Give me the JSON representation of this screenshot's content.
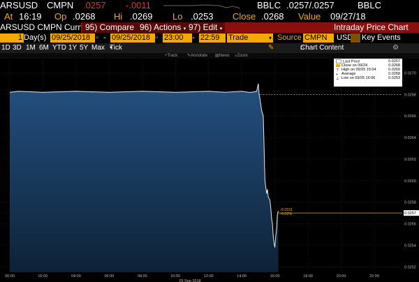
{
  "quote": {
    "ticker": "ARSUSD",
    "source": "CMPN",
    "last": ".0257",
    "change": "-.0011",
    "src2": "BBLC",
    "bid_ask": ".0257/.0257",
    "src3": "BBLC"
  },
  "stats": {
    "at_label": "At",
    "at_value": "16:19",
    "op_label": "Op",
    "op_value": ".0268",
    "hi_label": "Hi",
    "hi_value": ".0269",
    "lo_label": "Lo",
    "lo_value": ".0253",
    "close_label": "Close",
    "close_value": ".0268",
    "value_label": "Value",
    "value_value": "09/27/18"
  },
  "toolbar": {
    "security": "ARSUSD CMPN Curnc",
    "compare": "95) Compare",
    "actions": "96) Actions",
    "edit": "97) Edit",
    "title": "Intraday Price Chart"
  },
  "params": {
    "days": "1",
    "days_label": "Day(s)",
    "start_date": "09/25/2018",
    "end_date": "09/25/2018",
    "start_time": "23:00",
    "end_time": "22:59",
    "field": "Trade",
    "source_label": "Source",
    "source": "CMPN",
    "currency": "USD",
    "key_events": "Key Events"
  },
  "periods": [
    "1D",
    "3D",
    "1M",
    "6M",
    "YTD",
    "1Y",
    "5Y",
    "Max"
  ],
  "tick_label": "Tick",
  "chart_content": "Chart Content",
  "tools": [
    "Track",
    "Annotate",
    "News",
    "Zoom"
  ],
  "legend": [
    {
      "label": "Last Price",
      "value": "0.0257",
      "color": "#ffffff"
    },
    {
      "label": "Close on 09/24",
      "value": "0.0268",
      "color": "#f5a800"
    },
    {
      "label": "High on 09/25 15:04",
      "value": "0.0269",
      "color": "#ffffff"
    },
    {
      "label": "Average",
      "value": "0.0268",
      "color": "#ffffff"
    },
    {
      "label": "Low on 09/25 16:06",
      "value": "0.0253",
      "color": "#ffffff"
    }
  ],
  "chart_data": {
    "type": "area",
    "x_ticks": [
      "00:00",
      "02:00",
      "04:00",
      "06:00",
      "08:00",
      "10:00",
      "12:00",
      "14:00",
      "16:00",
      "18:00",
      "20:00",
      "22:00"
    ],
    "x_date": "25 Sep 2018",
    "y_ticks": [
      "0.0270",
      "0.0268",
      "0.0266",
      "0.0264",
      "0.0262",
      "0.0260",
      "0.0258",
      "0.0257",
      "0.0256",
      "0.0254",
      "0.0252"
    ],
    "ylim": [
      0.02515,
      0.02712
    ],
    "xlim": [
      0,
      24
    ],
    "close_line": 0.0268,
    "last_line": 0.0257,
    "series": [
      {
        "x": [
          0,
          0.5,
          2,
          4,
          6,
          8,
          10,
          12,
          13,
          14,
          14.4,
          14.6,
          14.9,
          15.0,
          15.05,
          15.1,
          15.2,
          15.3,
          15.4,
          15.5,
          15.55,
          15.6,
          15.7,
          15.75,
          15.8,
          15.85,
          15.9,
          15.95,
          16.0,
          16.05,
          16.1,
          16.15,
          16.2
        ],
        "y": [
          0.02682,
          0.02683,
          0.02682,
          0.02683,
          0.02682,
          0.02683,
          0.02682,
          0.02683,
          0.02682,
          0.02683,
          0.02682,
          0.02682,
          0.02683,
          0.0269,
          0.0268,
          0.02676,
          0.02665,
          0.0266,
          0.026,
          0.02588,
          0.02592,
          0.02585,
          0.02582,
          0.02575,
          0.02565,
          0.0256,
          0.02548,
          0.02542,
          0.02538,
          0.02548,
          0.02555,
          0.02568,
          0.02572
        ]
      }
    ],
    "annotation": [
      "-0.0011",
      "-4.02%"
    ]
  }
}
